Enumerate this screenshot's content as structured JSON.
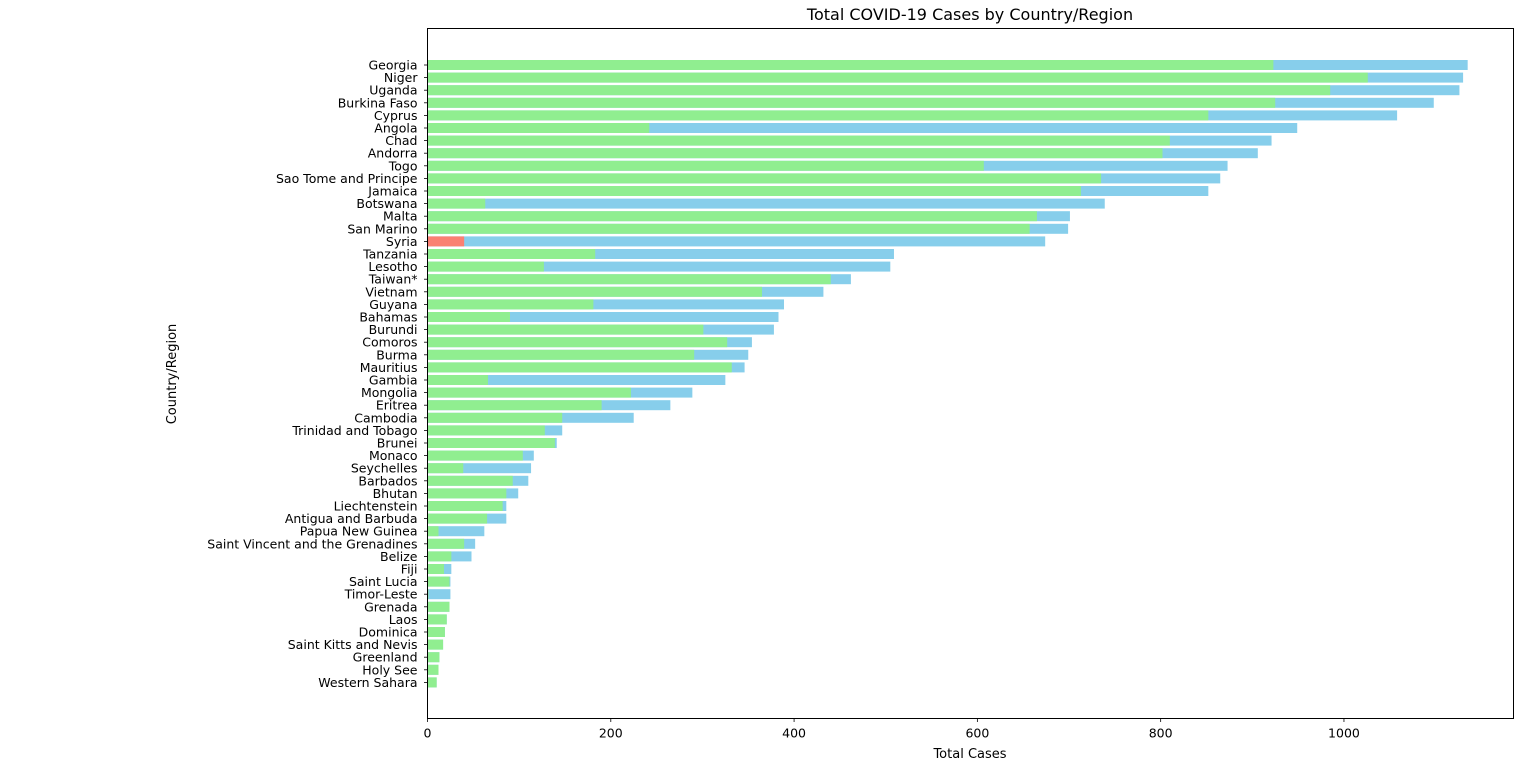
{
  "chart_data": {
    "type": "bar",
    "orientation": "horizontal",
    "stacked": true,
    "title": "Total COVID-19 Cases by Country/Region",
    "xlabel": "Total Cases",
    "ylabel": "Country/Region",
    "xlim": [
      0,
      1185
    ],
    "xticks": [
      0,
      200,
      400,
      600,
      800,
      1000
    ],
    "grid": false,
    "legend": "none",
    "categories": [
      "Georgia",
      "Niger",
      "Uganda",
      "Burkina Faso",
      "Cyprus",
      "Angola",
      "Chad",
      "Andorra",
      "Togo",
      "Sao Tome and Principe",
      "Jamaica",
      "Botswana",
      "Malta",
      "San Marino",
      "Syria",
      "Tanzania",
      "Lesotho",
      "Taiwan*",
      "Vietnam",
      "Guyana",
      "Bahamas",
      "Burundi",
      "Comoros",
      "Burma",
      "Mauritius",
      "Gambia",
      "Mongolia",
      "Eritrea",
      "Cambodia",
      "Trinidad and Tobago",
      "Brunei",
      "Monaco",
      "Seychelles",
      "Barbados",
      "Bhutan",
      "Liechtenstein",
      "Antigua and Barbuda",
      "Papua New Guinea",
      "Saint Vincent and the Grenadines",
      "Belize",
      "Fiji",
      "Saint Lucia",
      "Timor-Leste",
      "Grenada",
      "Laos",
      "Dominica",
      "Saint Kitts and Nevis",
      "Greenland",
      "Holy See",
      "Western Sahara"
    ],
    "total": [
      1135,
      1130,
      1126,
      1098,
      1058,
      949,
      921,
      906,
      873,
      865,
      852,
      739,
      701,
      699,
      674,
      509,
      505,
      462,
      432,
      389,
      383,
      378,
      354,
      350,
      346,
      325,
      289,
      265,
      225,
      147,
      141,
      116,
      113,
      110,
      99,
      86,
      86,
      62,
      52,
      48,
      26,
      25,
      25,
      24,
      21,
      19,
      17,
      13,
      12,
      10
    ],
    "recovered": [
      923,
      1026,
      985,
      925,
      852,
      242,
      810,
      802,
      607,
      735,
      713,
      63,
      665,
      657,
      0,
      183,
      127,
      440,
      365,
      181,
      90,
      301,
      327,
      291,
      332,
      66,
      222,
      190,
      147,
      128,
      139,
      104,
      39,
      93,
      86,
      82,
      65,
      12,
      40,
      26,
      18,
      24,
      1,
      24,
      21,
      19,
      17,
      13,
      12,
      10
    ],
    "deaths": [
      0,
      0,
      0,
      0,
      0,
      0,
      0,
      0,
      0,
      0,
      0,
      0,
      0,
      0,
      40,
      0,
      0,
      0,
      0,
      0,
      0,
      0,
      0,
      0,
      0,
      0,
      0,
      0,
      0,
      0,
      0,
      0,
      0,
      0,
      0,
      0,
      0,
      0,
      0,
      0,
      0,
      0,
      0,
      0,
      0,
      0,
      0,
      0,
      0,
      0
    ],
    "colors": {
      "total": "#87ceeb",
      "recovered": "#90ee90",
      "deaths": "#fa8072",
      "axis": "#000000"
    }
  }
}
